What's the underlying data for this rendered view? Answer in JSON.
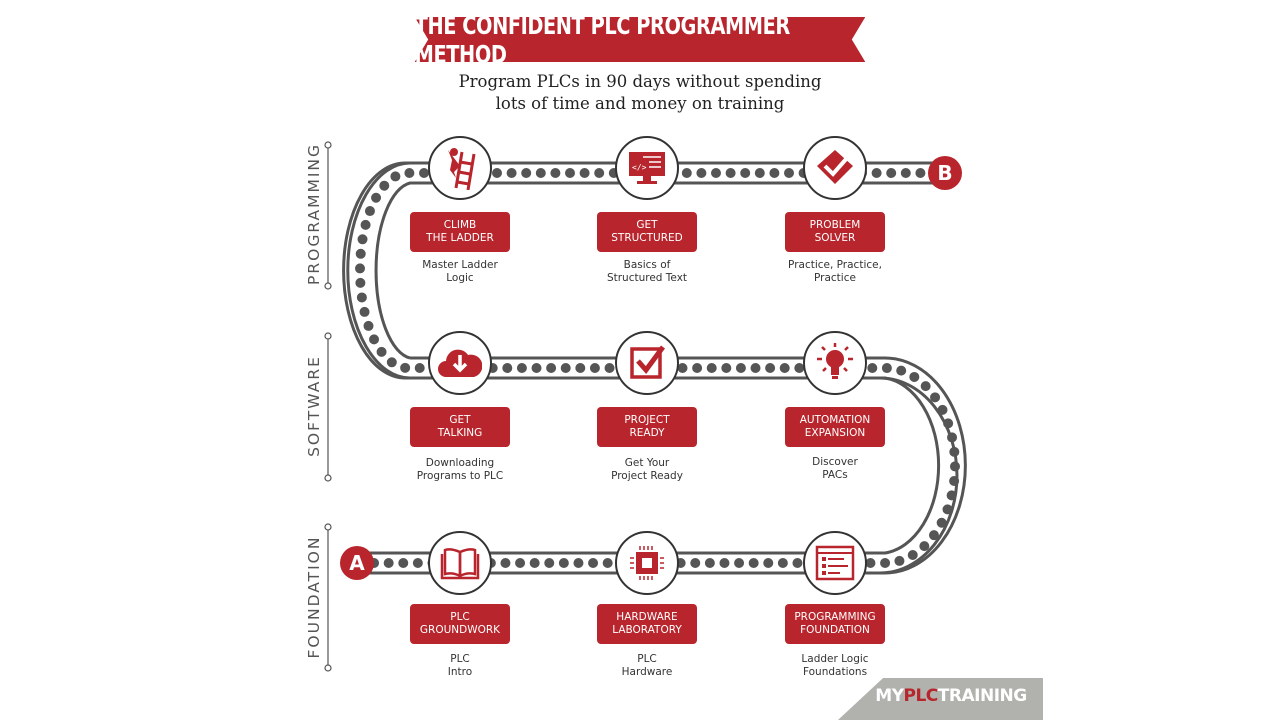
{
  "title": "THE CONFIDENT PLC PROGRAMMER METHOD",
  "subtitle": [
    "Program PLCs in 90 days without spending",
    "lots of time and money on training"
  ],
  "colors": {
    "accent": "#b8252c",
    "track": "#555555",
    "logo_bg": "#b1b1ad"
  },
  "start_marker": "A",
  "end_marker": "B",
  "sections": [
    {
      "label": "PROGRAMMING",
      "steps": [
        {
          "icon": "ladder-climber-icon",
          "title": "CLIMB\nTHE LADDER",
          "desc": "Master Ladder\nLogic"
        },
        {
          "icon": "code-monitor-icon",
          "title": "GET\nSTRUCTURED",
          "desc": "Basics of\nStructured Text"
        },
        {
          "icon": "double-check-icon",
          "title": "PROBLEM\nSOLVER",
          "desc": "Practice, Practice,\nPractice"
        }
      ]
    },
    {
      "label": "SOFTWARE",
      "steps": [
        {
          "icon": "cloud-download-icon",
          "title": "GET\nTALKING",
          "desc": "Downloading\nPrograms to PLC"
        },
        {
          "icon": "checkbox-icon",
          "title": "PROJECT\nREADY",
          "desc": "Get Your\nProject Ready"
        },
        {
          "icon": "lightbulb-icon",
          "title": "AUTOMATION\nEXPANSION",
          "desc": "Discover\nPACs"
        }
      ]
    },
    {
      "label": "FOUNDATION",
      "steps": [
        {
          "icon": "open-book-icon",
          "title": "PLC\nGROUNDWORK",
          "desc": "PLC\nIntro"
        },
        {
          "icon": "microchip-icon",
          "title": "HARDWARE\nLABORATORY",
          "desc": "PLC\nHardware"
        },
        {
          "icon": "program-window-icon",
          "title": "PROGRAMMING\nFOUNDATION",
          "desc": "Ladder Logic\nFoundations"
        }
      ]
    }
  ],
  "logo": {
    "part1": "MY",
    "part2": "PLC",
    "part3": "TRAINING"
  }
}
